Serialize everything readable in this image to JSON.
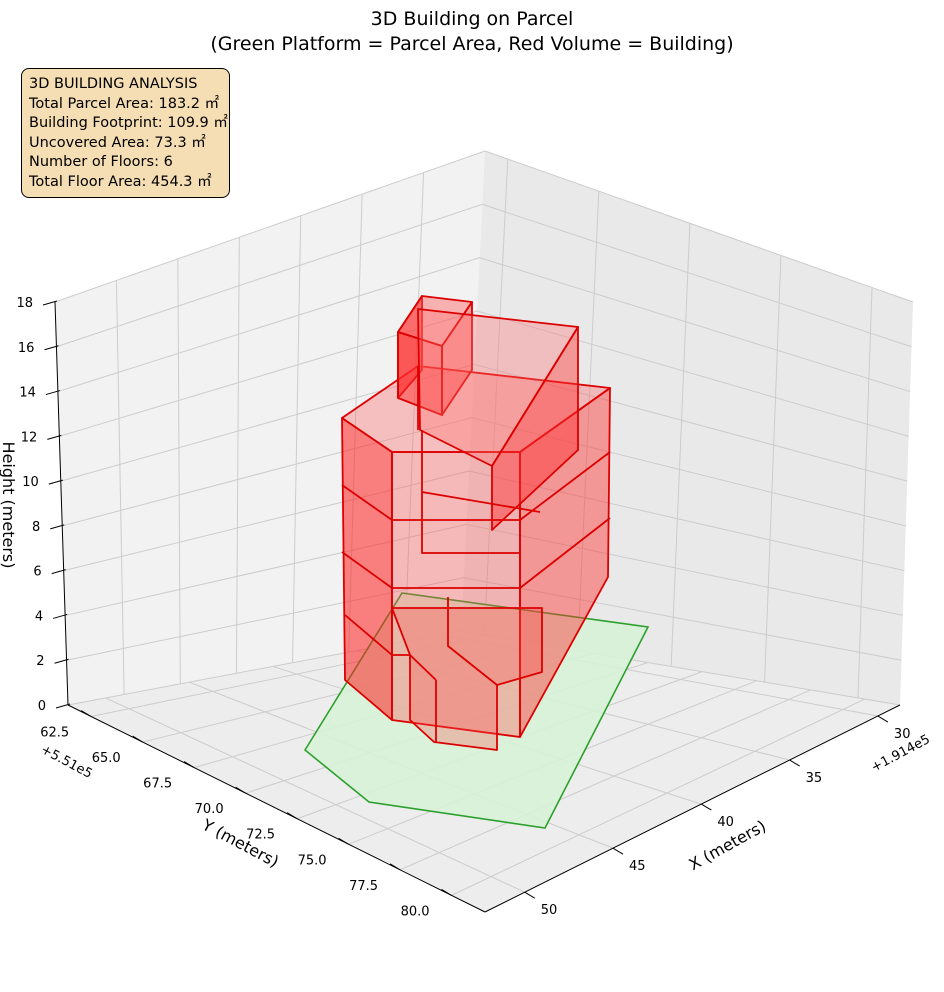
{
  "chart_data": {
    "type": "3d-building",
    "title": "3D Building on Parcel",
    "subtitle": "(Green Platform = Parcel Area, Red Volume = Building)",
    "xlabel": "X (meters)",
    "ylabel": "Y (meters)",
    "zlabel": "Height (meters)",
    "x_offset_label": "+1.914e5",
    "y_offset_label": "+5.51e5",
    "x_ticks": [
      "30",
      "35",
      "40",
      "45",
      "50"
    ],
    "y_ticks": [
      "62.5",
      "65.0",
      "67.5",
      "70.0",
      "72.5",
      "75.0",
      "77.5",
      "80.0"
    ],
    "z_ticks": [
      "0",
      "2",
      "4",
      "6",
      "8",
      "10",
      "12",
      "14",
      "16",
      "18"
    ],
    "zlim": [
      0,
      18
    ],
    "grid": true,
    "colors": {
      "parcel": "#2ca02c",
      "parcel_fill": "#d6f2d6",
      "building": "#ff0000"
    }
  },
  "info_box": {
    "title": "3D BUILDING ANALYSIS",
    "lines": [
      "Total Parcel Area: 183.2 ㎡",
      "Building Footprint: 109.9 ㎡",
      "Uncovered Area: 73.3 ㎡",
      "Number of Floors: 6",
      "Total Floor Area: 454.3 ㎡"
    ]
  }
}
